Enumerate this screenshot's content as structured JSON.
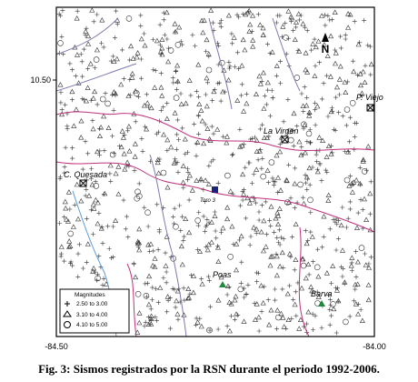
{
  "map": {
    "axis": {
      "lat_label": "10.50",
      "lon_left": "-84.50",
      "lon_right": "-84.00"
    },
    "north": "N",
    "labels": {
      "p_viejo": "P. Viejo",
      "la_virgen": "La Virgen",
      "c_quesada": "C. Quesada",
      "toro": "Toro 3",
      "poas": "Poas",
      "barva": "Barva"
    },
    "legend": {
      "title": "Magnitudes",
      "items": [
        "2.50 to 3.00",
        "3.10 to 4.00",
        "4.10 to 5.00"
      ]
    }
  },
  "caption": "Fig. 3: Sismos registrados por la RSN durante el periodo 1992-2006."
}
